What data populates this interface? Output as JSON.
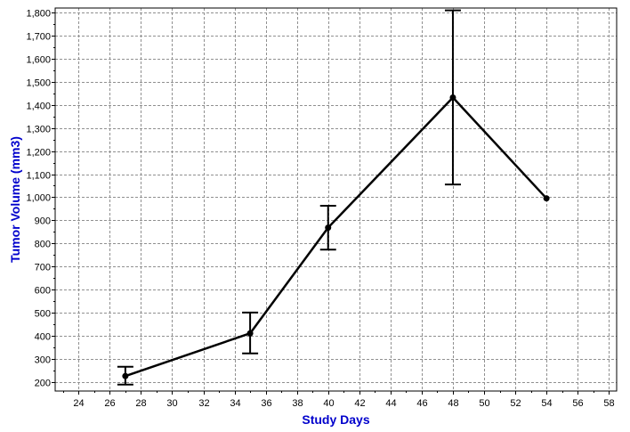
{
  "chart_data": {
    "type": "line",
    "title": "",
    "xlabel": "Study Days",
    "ylabel": "Tumor Volume (mm3)",
    "xlim": [
      22.5,
      58.5
    ],
    "ylim": [
      160,
      1820
    ],
    "x_ticks": [
      24,
      26,
      28,
      30,
      32,
      34,
      36,
      38,
      40,
      42,
      44,
      46,
      48,
      50,
      52,
      54,
      56,
      58
    ],
    "x_tick_labels": [
      "24",
      "26",
      "28",
      "30",
      "32",
      "34",
      "36",
      "38",
      "40",
      "42",
      "44",
      "46",
      "48",
      "50",
      "52",
      "54",
      "56",
      "58"
    ],
    "y_ticks": [
      200,
      300,
      400,
      500,
      600,
      700,
      800,
      900,
      1000,
      1100,
      1200,
      1300,
      1400,
      1500,
      1600,
      1700,
      1800
    ],
    "y_tick_labels": [
      "200",
      "300",
      "400",
      "500",
      "600",
      "700",
      "800",
      "900",
      "1,000",
      "1,100",
      "1,200",
      "1,300",
      "1,400",
      "1,500",
      "1,600",
      "1,700",
      "1,800"
    ],
    "grid": true,
    "series": [
      {
        "x": [
          27,
          35,
          40,
          48,
          54
        ],
        "y": [
          225,
          410,
          868,
          1432,
          995
        ],
        "error_low": [
          188,
          323,
          773,
          1055,
          995
        ],
        "error_high": [
          265,
          500,
          963,
          1810,
          995
        ]
      }
    ],
    "colors": {
      "line": "#000000",
      "grid": "#909090",
      "axis_title": "#0000cc",
      "background": "#ffffff"
    }
  }
}
